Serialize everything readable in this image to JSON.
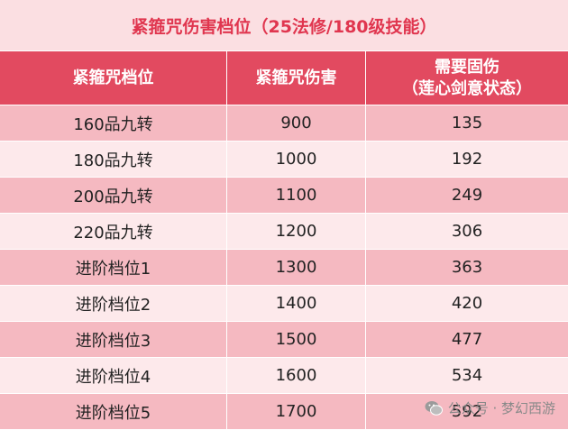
{
  "title": "紧箍咒伤害档位（25法修/180级技能）",
  "table": {
    "header": [
      "紧箍咒档位",
      "紧箍咒伤害",
      "需要固伤"
    ],
    "header_note": "（莲心剑意状态）",
    "rows": [
      [
        "160品九转",
        900,
        135
      ],
      [
        "180品九转",
        1000,
        192
      ],
      [
        "200品九转",
        1100,
        249
      ],
      [
        "220品九转",
        1200,
        306
      ],
      [
        "进阶档位1",
        1300,
        363
      ],
      [
        "进阶档位2",
        1400,
        420
      ],
      [
        "进阶档位3",
        1500,
        477
      ],
      [
        "进阶档位4",
        1600,
        534
      ],
      [
        "进阶档位5",
        1700,
        592
      ]
    ]
  },
  "watermark": "公众号 · 梦幻西游"
}
